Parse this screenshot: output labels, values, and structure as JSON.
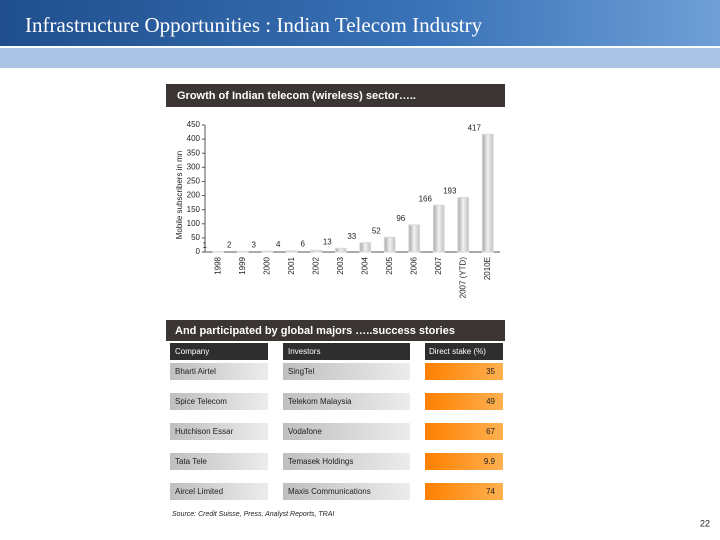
{
  "title": "Infrastructure Opportunities : Indian Telecom Industry",
  "chart_data": {
    "type": "bar",
    "title": "Growth of Indian telecom (wireless) sector…..",
    "ylabel": "Mobile subscribers in mn",
    "categories": [
      "1998",
      "1999",
      "2000",
      "2001",
      "2002",
      "2003",
      "2004",
      "2005",
      "2006",
      "2007",
      "2007 (YTD)",
      "2010E"
    ],
    "values": [
      1,
      2,
      3,
      4,
      6,
      13,
      33,
      52,
      96,
      166,
      193,
      417
    ],
    "color": "#d9d9d9",
    "ylim": [
      0,
      450
    ],
    "yticks": [
      0,
      50,
      100,
      150,
      200,
      250,
      300,
      350,
      400,
      450
    ],
    "grid": false
  },
  "table": {
    "title": "And participated by global majors …..success stories",
    "header": [
      "Company",
      "Investors",
      "Direct stake (%)"
    ],
    "rows": [
      [
        "Bharti Airtel",
        "SingTel",
        35
      ],
      [
        "Spice Telecom",
        "Telekom Malaysia",
        49
      ],
      [
        "Hutchison Essar",
        "Vodafone",
        67
      ],
      [
        "Tata Tele",
        "Temasek Holdings",
        9.9
      ],
      [
        "Aircel Limited",
        "Maxis Communications",
        74
      ]
    ]
  },
  "source": "Source: Credit Suisse, Press, Analyst Reports, TRAI",
  "page_number": "22"
}
